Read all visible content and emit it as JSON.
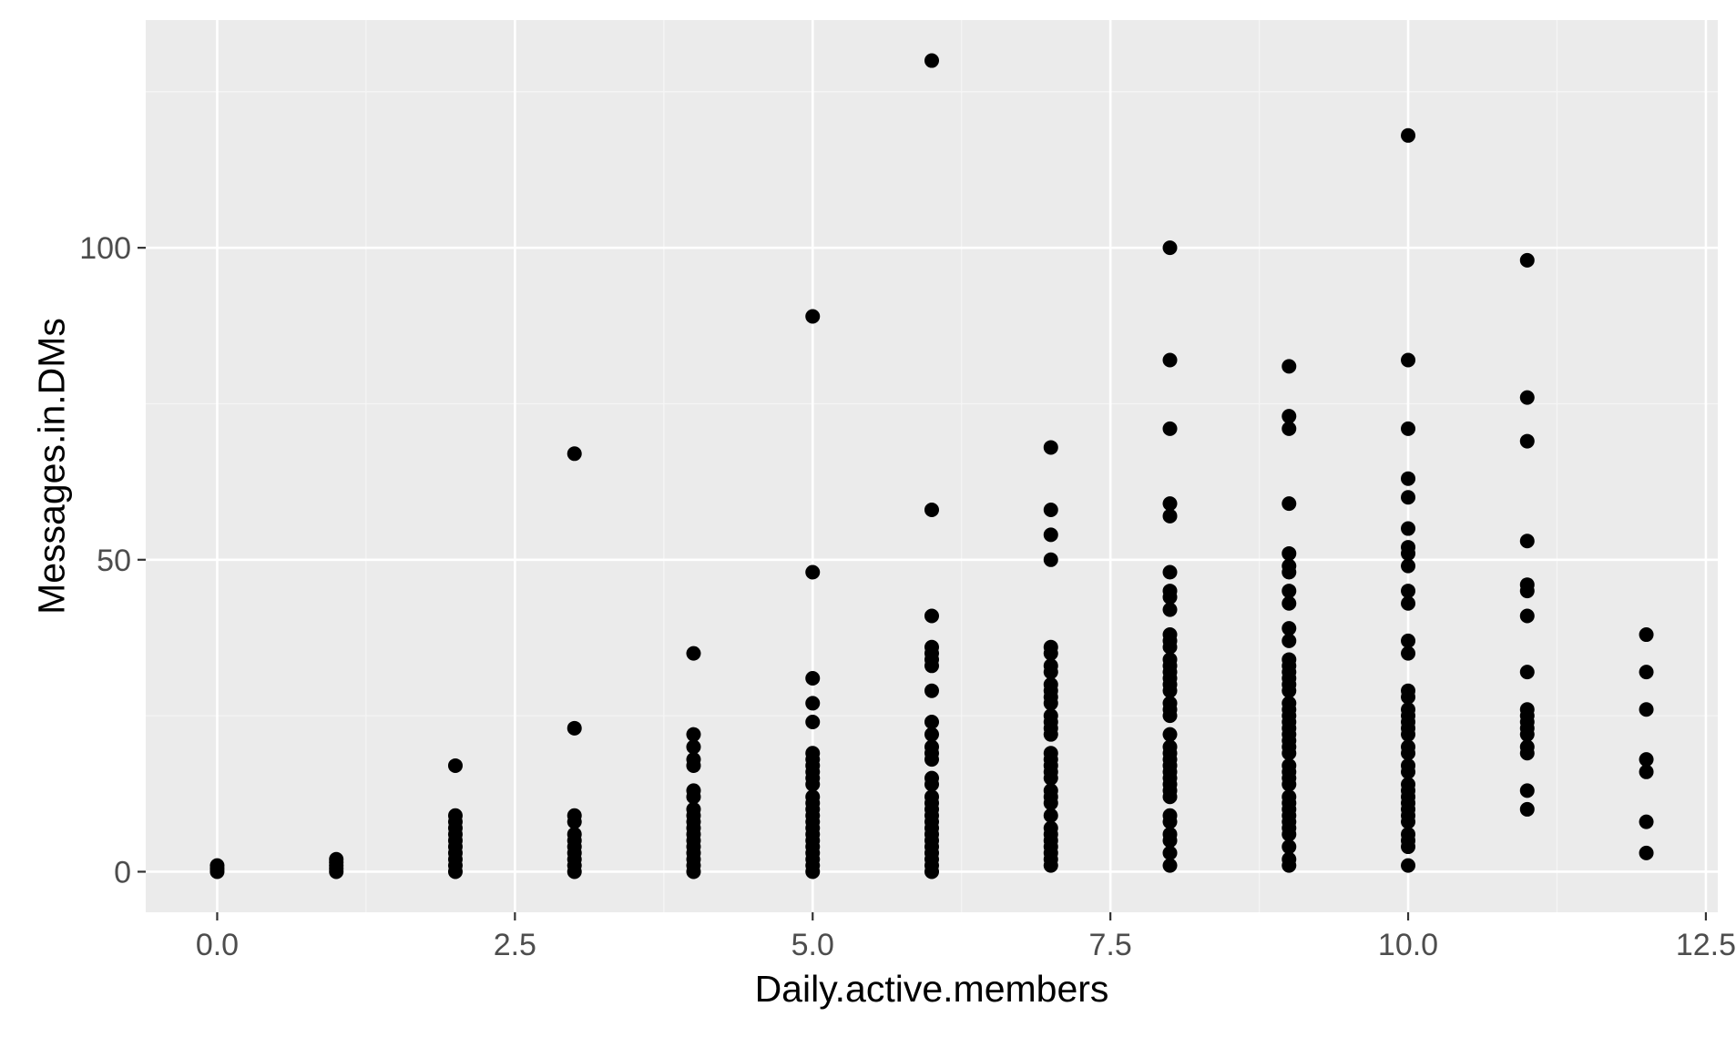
{
  "chart_data": {
    "type": "scatter",
    "title": "",
    "xlabel": "Daily.active.members",
    "ylabel": "Messages.in.DMs",
    "xlim": [
      -0.6,
      12.6
    ],
    "ylim": [
      -6.5,
      136.5
    ],
    "x_ticks": [
      0.0,
      2.5,
      5.0,
      7.5,
      10.0,
      12.5
    ],
    "x_tick_labels": [
      "0.0",
      "2.5",
      "5.0",
      "7.5",
      "10.0",
      "12.5"
    ],
    "y_ticks": [
      0,
      50,
      100
    ],
    "y_tick_labels": [
      "0",
      "50",
      "100"
    ],
    "grid": true,
    "legend": "none",
    "colors": {
      "panel_background": "#ebebeb",
      "grid_major": "#ffffff",
      "grid_minor": "#f5f5f5",
      "point": "#000000"
    },
    "points": [
      {
        "x": 0,
        "y": 0
      },
      {
        "x": 0,
        "y": 0.5
      },
      {
        "x": 0,
        "y": 1
      },
      {
        "x": 1,
        "y": 0
      },
      {
        "x": 1,
        "y": 0.5
      },
      {
        "x": 1,
        "y": 1
      },
      {
        "x": 1,
        "y": 1.5
      },
      {
        "x": 1,
        "y": 2
      },
      {
        "x": 2,
        "y": 0
      },
      {
        "x": 2,
        "y": 1
      },
      {
        "x": 2,
        "y": 2
      },
      {
        "x": 2,
        "y": 3
      },
      {
        "x": 2,
        "y": 4
      },
      {
        "x": 2,
        "y": 5
      },
      {
        "x": 2,
        "y": 6
      },
      {
        "x": 2,
        "y": 7
      },
      {
        "x": 2,
        "y": 8
      },
      {
        "x": 2,
        "y": 9
      },
      {
        "x": 2,
        "y": 17
      },
      {
        "x": 3,
        "y": 0
      },
      {
        "x": 3,
        "y": 1
      },
      {
        "x": 3,
        "y": 2
      },
      {
        "x": 3,
        "y": 3
      },
      {
        "x": 3,
        "y": 4
      },
      {
        "x": 3,
        "y": 5
      },
      {
        "x": 3,
        "y": 6
      },
      {
        "x": 3,
        "y": 8
      },
      {
        "x": 3,
        "y": 9
      },
      {
        "x": 3,
        "y": 23
      },
      {
        "x": 3,
        "y": 67
      },
      {
        "x": 4,
        "y": 0
      },
      {
        "x": 4,
        "y": 1
      },
      {
        "x": 4,
        "y": 2
      },
      {
        "x": 4,
        "y": 3
      },
      {
        "x": 4,
        "y": 4
      },
      {
        "x": 4,
        "y": 5
      },
      {
        "x": 4,
        "y": 6
      },
      {
        "x": 4,
        "y": 7
      },
      {
        "x": 4,
        "y": 8
      },
      {
        "x": 4,
        "y": 9
      },
      {
        "x": 4,
        "y": 10
      },
      {
        "x": 4,
        "y": 12
      },
      {
        "x": 4,
        "y": 13
      },
      {
        "x": 4,
        "y": 17
      },
      {
        "x": 4,
        "y": 18
      },
      {
        "x": 4,
        "y": 20
      },
      {
        "x": 4,
        "y": 22
      },
      {
        "x": 4,
        "y": 35
      },
      {
        "x": 5,
        "y": 0
      },
      {
        "x": 5,
        "y": 1
      },
      {
        "x": 5,
        "y": 2
      },
      {
        "x": 5,
        "y": 3
      },
      {
        "x": 5,
        "y": 4
      },
      {
        "x": 5,
        "y": 5
      },
      {
        "x": 5,
        "y": 6
      },
      {
        "x": 5,
        "y": 7
      },
      {
        "x": 5,
        "y": 8
      },
      {
        "x": 5,
        "y": 9
      },
      {
        "x": 5,
        "y": 10
      },
      {
        "x": 5,
        "y": 11
      },
      {
        "x": 5,
        "y": 12
      },
      {
        "x": 5,
        "y": 14
      },
      {
        "x": 5,
        "y": 15
      },
      {
        "x": 5,
        "y": 16
      },
      {
        "x": 5,
        "y": 17
      },
      {
        "x": 5,
        "y": 18
      },
      {
        "x": 5,
        "y": 19
      },
      {
        "x": 5,
        "y": 24
      },
      {
        "x": 5,
        "y": 27
      },
      {
        "x": 5,
        "y": 31
      },
      {
        "x": 5,
        "y": 48
      },
      {
        "x": 5,
        "y": 89
      },
      {
        "x": 6,
        "y": 0
      },
      {
        "x": 6,
        "y": 1
      },
      {
        "x": 6,
        "y": 2
      },
      {
        "x": 6,
        "y": 3
      },
      {
        "x": 6,
        "y": 4
      },
      {
        "x": 6,
        "y": 5
      },
      {
        "x": 6,
        "y": 6
      },
      {
        "x": 6,
        "y": 7
      },
      {
        "x": 6,
        "y": 8
      },
      {
        "x": 6,
        "y": 9
      },
      {
        "x": 6,
        "y": 10
      },
      {
        "x": 6,
        "y": 11
      },
      {
        "x": 6,
        "y": 12
      },
      {
        "x": 6,
        "y": 14
      },
      {
        "x": 6,
        "y": 15
      },
      {
        "x": 6,
        "y": 18
      },
      {
        "x": 6,
        "y": 19
      },
      {
        "x": 6,
        "y": 20
      },
      {
        "x": 6,
        "y": 22
      },
      {
        "x": 6,
        "y": 24
      },
      {
        "x": 6,
        "y": 29
      },
      {
        "x": 6,
        "y": 33
      },
      {
        "x": 6,
        "y": 34
      },
      {
        "x": 6,
        "y": 35
      },
      {
        "x": 6,
        "y": 36
      },
      {
        "x": 6,
        "y": 41
      },
      {
        "x": 6,
        "y": 58
      },
      {
        "x": 6,
        "y": 130
      },
      {
        "x": 7,
        "y": 1
      },
      {
        "x": 7,
        "y": 2
      },
      {
        "x": 7,
        "y": 3
      },
      {
        "x": 7,
        "y": 4
      },
      {
        "x": 7,
        "y": 5
      },
      {
        "x": 7,
        "y": 6
      },
      {
        "x": 7,
        "y": 7
      },
      {
        "x": 7,
        "y": 9
      },
      {
        "x": 7,
        "y": 11
      },
      {
        "x": 7,
        "y": 12
      },
      {
        "x": 7,
        "y": 13
      },
      {
        "x": 7,
        "y": 15
      },
      {
        "x": 7,
        "y": 16
      },
      {
        "x": 7,
        "y": 17
      },
      {
        "x": 7,
        "y": 18
      },
      {
        "x": 7,
        "y": 19
      },
      {
        "x": 7,
        "y": 22
      },
      {
        "x": 7,
        "y": 23
      },
      {
        "x": 7,
        "y": 24
      },
      {
        "x": 7,
        "y": 25
      },
      {
        "x": 7,
        "y": 27
      },
      {
        "x": 7,
        "y": 28
      },
      {
        "x": 7,
        "y": 29
      },
      {
        "x": 7,
        "y": 30
      },
      {
        "x": 7,
        "y": 32
      },
      {
        "x": 7,
        "y": 33
      },
      {
        "x": 7,
        "y": 35
      },
      {
        "x": 7,
        "y": 36
      },
      {
        "x": 7,
        "y": 50
      },
      {
        "x": 7,
        "y": 54
      },
      {
        "x": 7,
        "y": 58
      },
      {
        "x": 7,
        "y": 68
      },
      {
        "x": 8,
        "y": 1
      },
      {
        "x": 8,
        "y": 3
      },
      {
        "x": 8,
        "y": 5
      },
      {
        "x": 8,
        "y": 6
      },
      {
        "x": 8,
        "y": 8
      },
      {
        "x": 8,
        "y": 9
      },
      {
        "x": 8,
        "y": 12
      },
      {
        "x": 8,
        "y": 13
      },
      {
        "x": 8,
        "y": 14
      },
      {
        "x": 8,
        "y": 15
      },
      {
        "x": 8,
        "y": 16
      },
      {
        "x": 8,
        "y": 17
      },
      {
        "x": 8,
        "y": 18
      },
      {
        "x": 8,
        "y": 19
      },
      {
        "x": 8,
        "y": 20
      },
      {
        "x": 8,
        "y": 22
      },
      {
        "x": 8,
        "y": 25
      },
      {
        "x": 8,
        "y": 26
      },
      {
        "x": 8,
        "y": 27
      },
      {
        "x": 8,
        "y": 29
      },
      {
        "x": 8,
        "y": 30
      },
      {
        "x": 8,
        "y": 31
      },
      {
        "x": 8,
        "y": 32
      },
      {
        "x": 8,
        "y": 33
      },
      {
        "x": 8,
        "y": 34
      },
      {
        "x": 8,
        "y": 36
      },
      {
        "x": 8,
        "y": 37
      },
      {
        "x": 8,
        "y": 38
      },
      {
        "x": 8,
        "y": 42
      },
      {
        "x": 8,
        "y": 44
      },
      {
        "x": 8,
        "y": 45
      },
      {
        "x": 8,
        "y": 48
      },
      {
        "x": 8,
        "y": 57
      },
      {
        "x": 8,
        "y": 59
      },
      {
        "x": 8,
        "y": 71
      },
      {
        "x": 8,
        "y": 82
      },
      {
        "x": 8,
        "y": 100
      },
      {
        "x": 9,
        "y": 1
      },
      {
        "x": 9,
        "y": 2
      },
      {
        "x": 9,
        "y": 4
      },
      {
        "x": 9,
        "y": 6
      },
      {
        "x": 9,
        "y": 7
      },
      {
        "x": 9,
        "y": 8
      },
      {
        "x": 9,
        "y": 9
      },
      {
        "x": 9,
        "y": 10
      },
      {
        "x": 9,
        "y": 11
      },
      {
        "x": 9,
        "y": 12
      },
      {
        "x": 9,
        "y": 14
      },
      {
        "x": 9,
        "y": 15
      },
      {
        "x": 9,
        "y": 16
      },
      {
        "x": 9,
        "y": 17
      },
      {
        "x": 9,
        "y": 19
      },
      {
        "x": 9,
        "y": 20
      },
      {
        "x": 9,
        "y": 21
      },
      {
        "x": 9,
        "y": 22
      },
      {
        "x": 9,
        "y": 23
      },
      {
        "x": 9,
        "y": 24
      },
      {
        "x": 9,
        "y": 25
      },
      {
        "x": 9,
        "y": 26
      },
      {
        "x": 9,
        "y": 27
      },
      {
        "x": 9,
        "y": 29
      },
      {
        "x": 9,
        "y": 30
      },
      {
        "x": 9,
        "y": 31
      },
      {
        "x": 9,
        "y": 32
      },
      {
        "x": 9,
        "y": 33
      },
      {
        "x": 9,
        "y": 34
      },
      {
        "x": 9,
        "y": 37
      },
      {
        "x": 9,
        "y": 39
      },
      {
        "x": 9,
        "y": 43
      },
      {
        "x": 9,
        "y": 45
      },
      {
        "x": 9,
        "y": 48
      },
      {
        "x": 9,
        "y": 49
      },
      {
        "x": 9,
        "y": 51
      },
      {
        "x": 9,
        "y": 59
      },
      {
        "x": 9,
        "y": 71
      },
      {
        "x": 9,
        "y": 73
      },
      {
        "x": 9,
        "y": 81
      },
      {
        "x": 10,
        "y": 1
      },
      {
        "x": 10,
        "y": 4
      },
      {
        "x": 10,
        "y": 5
      },
      {
        "x": 10,
        "y": 6
      },
      {
        "x": 10,
        "y": 8
      },
      {
        "x": 10,
        "y": 9
      },
      {
        "x": 10,
        "y": 10
      },
      {
        "x": 10,
        "y": 11
      },
      {
        "x": 10,
        "y": 12
      },
      {
        "x": 10,
        "y": 13
      },
      {
        "x": 10,
        "y": 14
      },
      {
        "x": 10,
        "y": 16
      },
      {
        "x": 10,
        "y": 17
      },
      {
        "x": 10,
        "y": 19
      },
      {
        "x": 10,
        "y": 20
      },
      {
        "x": 10,
        "y": 22
      },
      {
        "x": 10,
        "y": 23
      },
      {
        "x": 10,
        "y": 24
      },
      {
        "x": 10,
        "y": 25
      },
      {
        "x": 10,
        "y": 26
      },
      {
        "x": 10,
        "y": 28
      },
      {
        "x": 10,
        "y": 29
      },
      {
        "x": 10,
        "y": 35
      },
      {
        "x": 10,
        "y": 37
      },
      {
        "x": 10,
        "y": 43
      },
      {
        "x": 10,
        "y": 45
      },
      {
        "x": 10,
        "y": 49
      },
      {
        "x": 10,
        "y": 51
      },
      {
        "x": 10,
        "y": 52
      },
      {
        "x": 10,
        "y": 55
      },
      {
        "x": 10,
        "y": 60
      },
      {
        "x": 10,
        "y": 63
      },
      {
        "x": 10,
        "y": 71
      },
      {
        "x": 10,
        "y": 82
      },
      {
        "x": 10,
        "y": 118
      },
      {
        "x": 11,
        "y": 10
      },
      {
        "x": 11,
        "y": 13
      },
      {
        "x": 11,
        "y": 19
      },
      {
        "x": 11,
        "y": 20
      },
      {
        "x": 11,
        "y": 22
      },
      {
        "x": 11,
        "y": 23
      },
      {
        "x": 11,
        "y": 24
      },
      {
        "x": 11,
        "y": 25
      },
      {
        "x": 11,
        "y": 26
      },
      {
        "x": 11,
        "y": 32
      },
      {
        "x": 11,
        "y": 41
      },
      {
        "x": 11,
        "y": 45
      },
      {
        "x": 11,
        "y": 46
      },
      {
        "x": 11,
        "y": 53
      },
      {
        "x": 11,
        "y": 69
      },
      {
        "x": 11,
        "y": 76
      },
      {
        "x": 11,
        "y": 98
      },
      {
        "x": 12,
        "y": 3
      },
      {
        "x": 12,
        "y": 8
      },
      {
        "x": 12,
        "y": 16
      },
      {
        "x": 12,
        "y": 18
      },
      {
        "x": 12,
        "y": 26
      },
      {
        "x": 12,
        "y": 32
      },
      {
        "x": 12,
        "y": 38
      }
    ]
  }
}
